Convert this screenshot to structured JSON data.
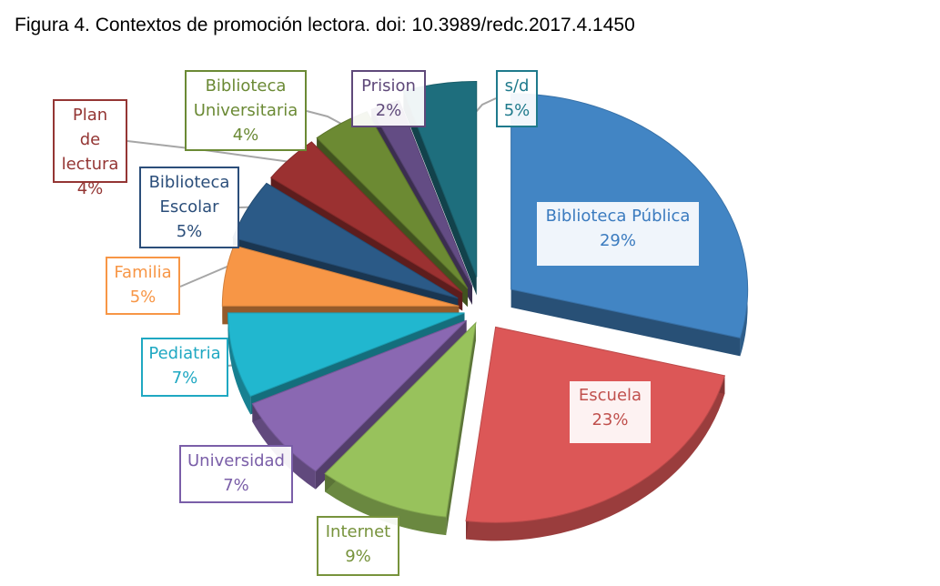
{
  "figure": {
    "caption": "Figura 4. Contextos de promoción lectora. doi: 10.3989/redc.2017.4.1450"
  },
  "chart_data": {
    "type": "pie",
    "title": "",
    "slices": [
      {
        "label": "Biblioteca Pública",
        "value": 29,
        "value_label": "29%",
        "color": "#4285c4",
        "label_color": "#3b7bbf"
      },
      {
        "label": "Escuela",
        "value": 23,
        "value_label": "23%",
        "color": "#dc5757",
        "label_color": "#c0504d"
      },
      {
        "label": "Internet",
        "value": 9,
        "value_label": "9%",
        "color": "#98c25c",
        "label_color": "#77933c"
      },
      {
        "label": "Universidad",
        "value": 7,
        "value_label": "7%",
        "color": "#8a68b2",
        "label_color": "#7a5ea8"
      },
      {
        "label": "Pediatria",
        "value": 7,
        "value_label": "7%",
        "color": "#21b7cf",
        "label_color": "#1fa8c2"
      },
      {
        "label": "Familia",
        "value": 5,
        "value_label": "5%",
        "color": "#f79646",
        "label_color": "#f79646"
      },
      {
        "label": "Biblioteca Escolar",
        "value": 5,
        "value_label": "5%",
        "color": "#2b5a87",
        "label_color": "#2b4e7a"
      },
      {
        "label": "Plan de lectura",
        "value": 4,
        "value_label": "4%",
        "color": "#9b3131",
        "label_color": "#943634"
      },
      {
        "label": "Biblioteca Universitaria",
        "value": 4,
        "value_label": "4%",
        "color": "#6c8a33",
        "label_color": "#6b8a35"
      },
      {
        "label": "Prision",
        "value": 2,
        "value_label": "2%",
        "color": "#634c84",
        "label_color": "#5f497a"
      },
      {
        "label": "s/d",
        "value": 5,
        "value_label": "5%",
        "color": "#1e6e7d",
        "label_color": "#1f7a8c"
      }
    ]
  }
}
